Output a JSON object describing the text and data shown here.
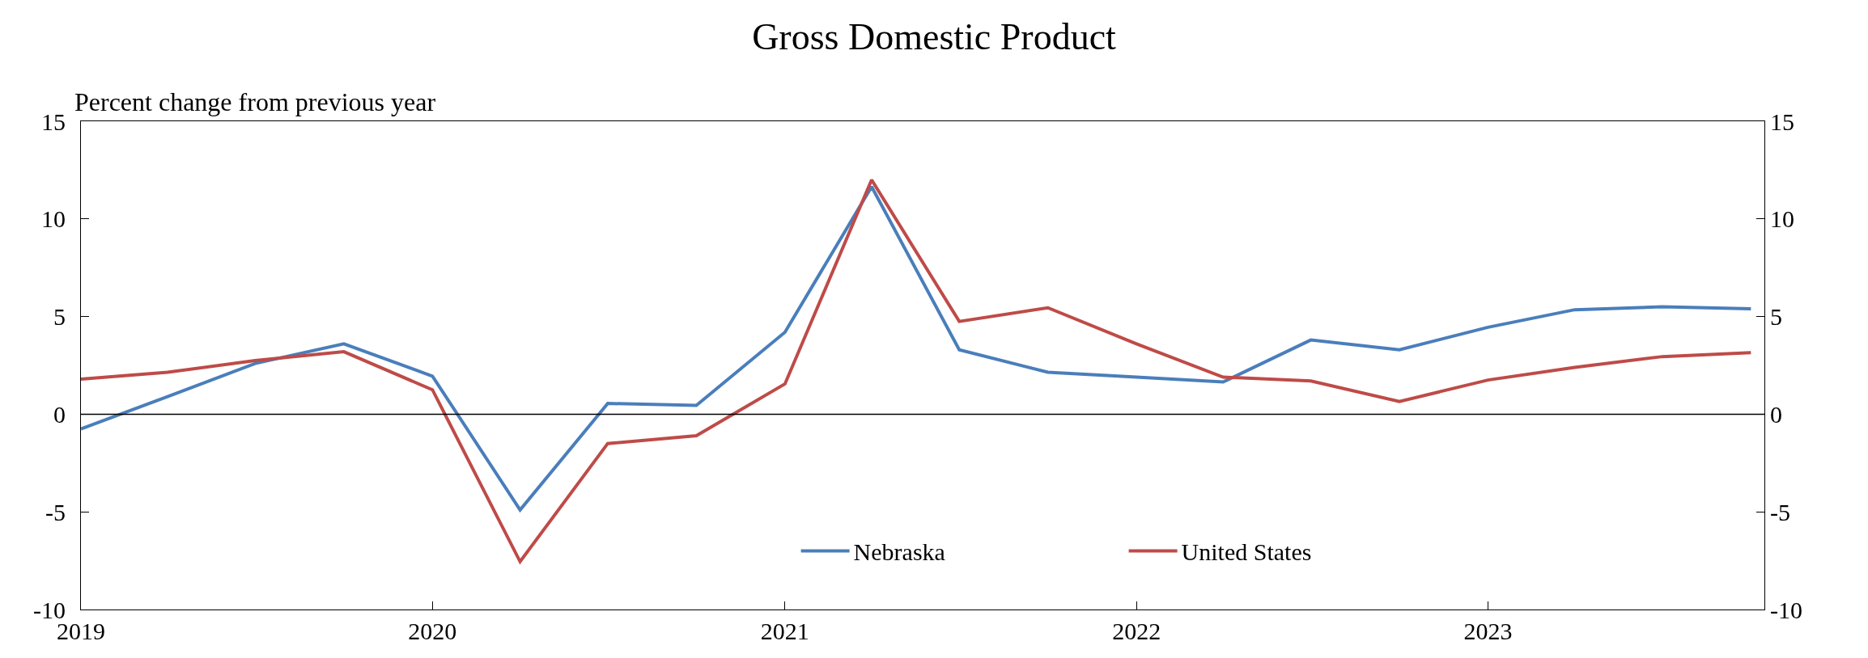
{
  "chart_data": {
    "type": "line",
    "title": "Gross Domestic Product",
    "ylabel": "Percent change from previous year",
    "x": [
      "2019-01",
      "2019-04",
      "2019-07",
      "2019-10",
      "2020-01",
      "2020-04",
      "2020-07",
      "2020-10",
      "2021-01",
      "2021-04",
      "2021-07",
      "2021-10",
      "2022-01",
      "2022-04",
      "2022-07",
      "2022-10",
      "2023-01",
      "2023-04",
      "2023-07",
      "2023-10"
    ],
    "series": [
      {
        "name": "Nebraska",
        "color": "#4a7ebb",
        "values": [
          -0.75,
          0.9,
          2.6,
          3.6,
          1.95,
          -4.9,
          0.55,
          0.45,
          4.2,
          11.65,
          3.3,
          2.15,
          1.9,
          1.65,
          3.8,
          3.3,
          4.45,
          5.35,
          5.5,
          5.4
        ]
      },
      {
        "name": "United States",
        "color": "#be4b48",
        "values": [
          1.8,
          2.15,
          2.75,
          3.2,
          1.25,
          -7.55,
          -1.5,
          -1.1,
          1.55,
          12.0,
          4.75,
          5.45,
          3.6,
          1.9,
          1.7,
          0.65,
          1.75,
          2.4,
          2.95,
          3.15
        ]
      }
    ],
    "xlim": [
      "2019-01",
      "2023-10-15"
    ],
    "xticks": [
      {
        "value": "2019-01",
        "label": "2019"
      },
      {
        "value": "2020-01",
        "label": "2020"
      },
      {
        "value": "2021-01",
        "label": "2021"
      },
      {
        "value": "2022-01",
        "label": "2022"
      },
      {
        "value": "2023-01",
        "label": "2023"
      }
    ],
    "ylim": [
      -10,
      15
    ],
    "yticks": [
      -10,
      -5,
      0,
      5,
      10,
      15
    ],
    "y2lim": [
      -10,
      15
    ],
    "y2ticks": [
      -10,
      -5,
      0,
      5,
      10,
      15
    ],
    "ref_lines": [
      {
        "axis": "y",
        "value": 0,
        "color": "#000000"
      }
    ],
    "legend": "bottom",
    "marker": "none",
    "line_style": "solid"
  }
}
